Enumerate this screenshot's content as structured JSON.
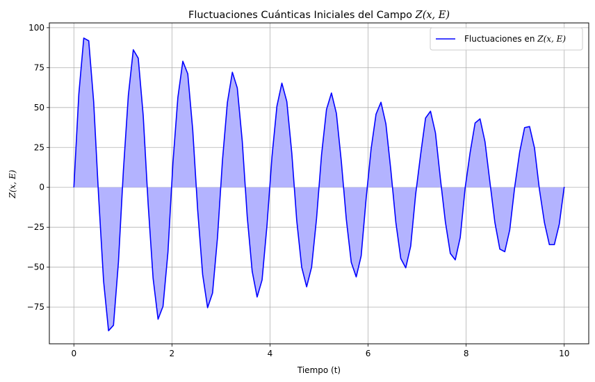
{
  "chart_data": {
    "type": "area",
    "title": {
      "text": "Fluctuaciones Cuánticas Iniciales del Campo",
      "math": "Z(x, E)"
    },
    "xlabel": "Tiempo (t)",
    "ylabel": "Z(x, E)",
    "xlim": [
      -0.5,
      10.5
    ],
    "ylim": [
      -98,
      103
    ],
    "xticks": [
      0,
      2,
      4,
      6,
      8,
      10
    ],
    "yticks": [
      -75,
      -50,
      -25,
      0,
      25,
      50,
      75,
      100
    ],
    "xtick_labels": [
      "0",
      "2",
      "4",
      "6",
      "8",
      "10"
    ],
    "ytick_labels": [
      "−75",
      "−50",
      "−25",
      "0",
      "25",
      "50",
      "75",
      "100"
    ],
    "grid": true,
    "legend_position": "top-right",
    "series": [
      {
        "name": "Fluctuaciones en",
        "name_math": "Z(x, E)",
        "line_color": "#0000ff",
        "fill_color": "#b3b3ff",
        "x": [
          0,
          0.101,
          0.202,
          0.303,
          0.404,
          0.505,
          0.606,
          0.707,
          0.808,
          0.909,
          1.01,
          1.111,
          1.212,
          1.313,
          1.414,
          1.515,
          1.616,
          1.717,
          1.818,
          1.919,
          2.02,
          2.121,
          2.222,
          2.323,
          2.424,
          2.525,
          2.626,
          2.727,
          2.828,
          2.929,
          3.03,
          3.131,
          3.232,
          3.333,
          3.434,
          3.535,
          3.636,
          3.737,
          3.838,
          3.939,
          4.04,
          4.141,
          4.242,
          4.343,
          4.444,
          4.545,
          4.646,
          4.747,
          4.848,
          4.949,
          5.051,
          5.152,
          5.253,
          5.354,
          5.455,
          5.556,
          5.657,
          5.758,
          5.859,
          5.96,
          6.061,
          6.162,
          6.263,
          6.364,
          6.465,
          6.566,
          6.667,
          6.768,
          6.869,
          6.97,
          7.071,
          7.172,
          7.273,
          7.374,
          7.475,
          7.576,
          7.677,
          7.778,
          7.879,
          7.98,
          8.081,
          8.182,
          8.283,
          8.384,
          8.485,
          8.586,
          8.687,
          8.788,
          8.889,
          8.99,
          9.091,
          9.192,
          9.293,
          9.394,
          9.495,
          9.596,
          9.697,
          9.798,
          9.899,
          10.0
        ],
        "y": [
          0,
          58.4,
          93.5,
          91.8,
          53.5,
          -5.9,
          -58.7,
          -89.8,
          -86.4,
          -46.8,
          10.6,
          57.6,
          86.2,
          80.9,
          45.0,
          -10.6,
          -57.0,
          -82.6,
          -74.5,
          -40.5,
          15.2,
          56.3,
          79.0,
          71.1,
          36.0,
          -14.2,
          -54.6,
          -75.4,
          -66.2,
          -31.4,
          16.8,
          53.2,
          72.1,
          62.2,
          28.9,
          -18.2,
          -52.5,
          -68.7,
          -58.0,
          -23.5,
          19.2,
          50.9,
          65.3,
          53.7,
          21.5,
          -20.8,
          -50.0,
          -62.3,
          -50.0,
          -19.5,
          20.4,
          48.8,
          59.1,
          46.3,
          16.0,
          -20.0,
          -47.0,
          -56.1,
          -42.9,
          -7.1,
          23.9,
          45.8,
          53.3,
          39.6,
          10.5,
          -21.9,
          -44.6,
          -50.4,
          -36.8,
          -4.4,
          20.4,
          43.4,
          47.7,
          34.1,
          5.3,
          -21.6,
          -41.4,
          -45.4,
          -31.4,
          -0.2,
          21.8,
          40.3,
          42.9,
          28.6,
          3.2,
          -22.0,
          -38.7,
          -40.3,
          -26.6,
          0.2,
          22.0,
          37.4,
          38.1,
          24.6,
          -1.5,
          -22.0,
          -35.9,
          -35.9,
          -23.1,
          0.3
        ]
      }
    ]
  }
}
